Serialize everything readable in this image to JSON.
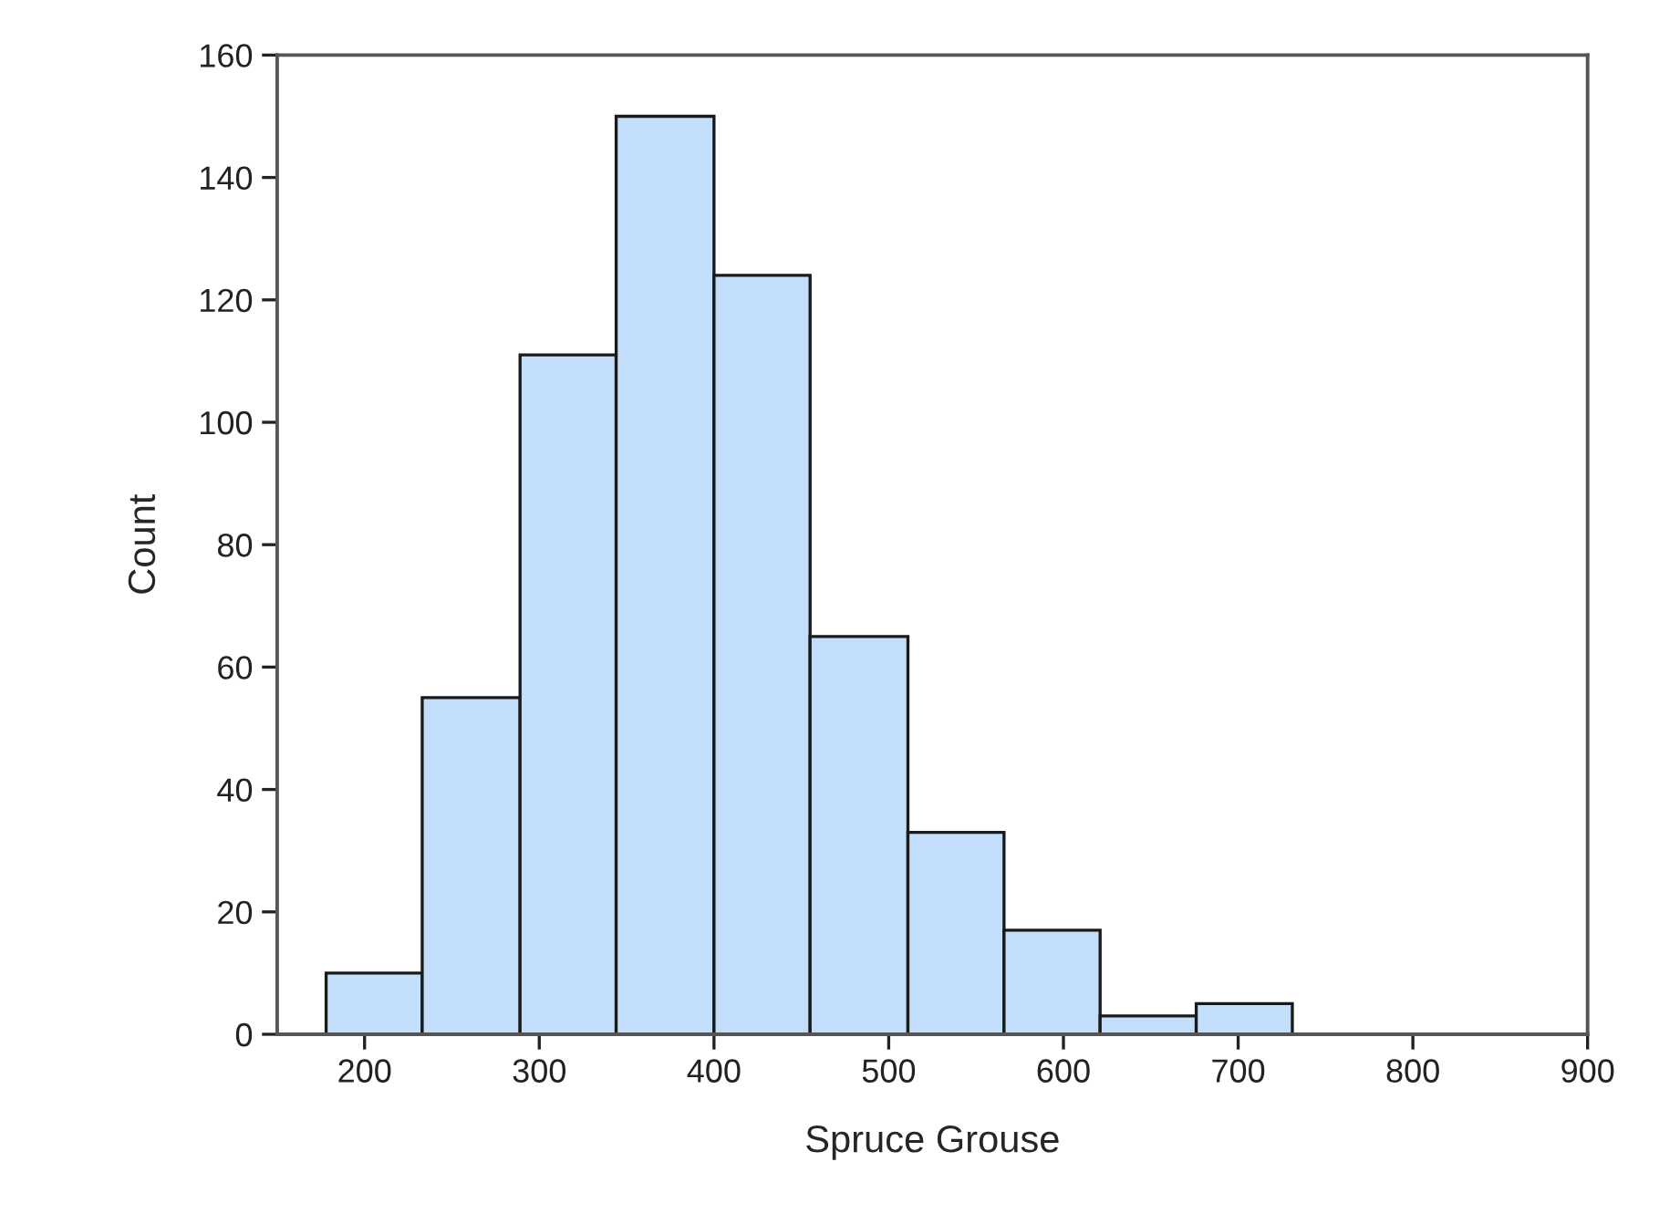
{
  "chart_data": {
    "type": "histogram",
    "xlabel": "Spruce Grouse",
    "ylabel": "Count",
    "bins": [
      178,
      233,
      289,
      344,
      400,
      455,
      511,
      566,
      621,
      676,
      731
    ],
    "values": [
      10,
      55,
      111,
      150,
      124,
      65,
      33,
      17,
      3,
      5
    ],
    "color": "#c2defa",
    "xlim": [
      150,
      900
    ],
    "xticks": [
      200,
      300,
      400,
      500,
      600,
      700,
      800,
      900
    ],
    "ylim": [
      0,
      160
    ],
    "yticks": [
      0,
      20,
      40,
      60,
      80,
      100,
      120,
      140,
      160
    ],
    "grid": false
  }
}
